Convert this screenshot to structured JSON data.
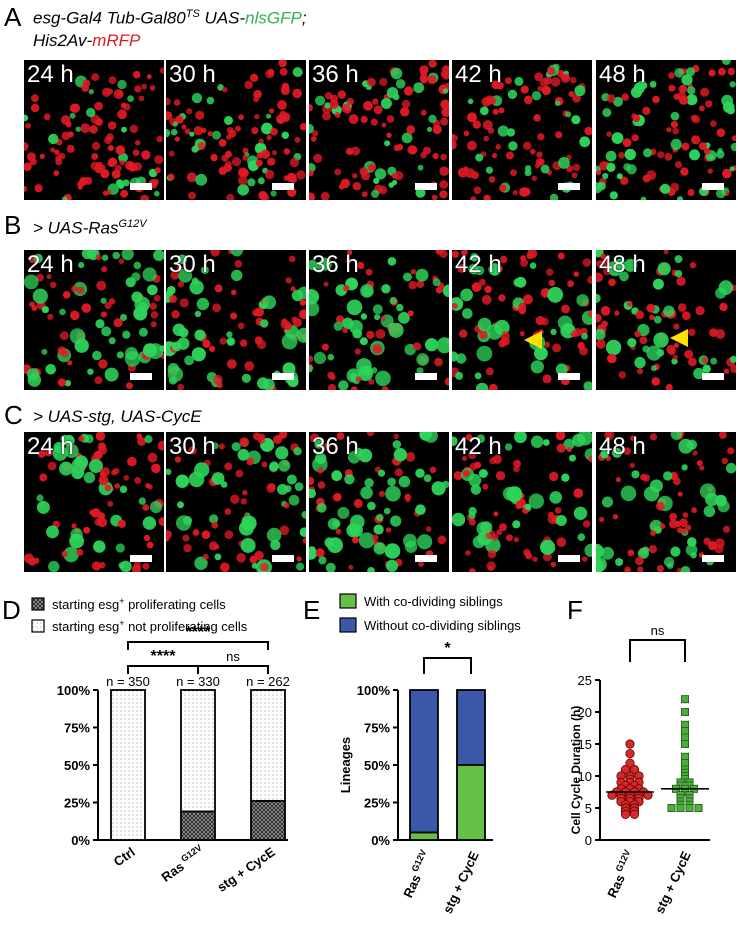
{
  "panels": {
    "A": {
      "letter": "A",
      "genotype_line1": "esg-Gal4 Tub-Gal80",
      "genotype_sup": "TS",
      "genotype_mid": " UAS-",
      "gfp": "nlsGFP",
      "semi": ";",
      "genotype_line2": "His2Av-",
      "rfp": "mRFP"
    },
    "B": {
      "letter": "B",
      "genotype": "> UAS-Ras",
      "sup": "G12V"
    },
    "C": {
      "letter": "C",
      "genotype": "> UAS-stg, UAS-CycE"
    },
    "D": {
      "letter": "D"
    },
    "E": {
      "letter": "E"
    },
    "F": {
      "letter": "F"
    }
  },
  "timepoints": [
    "24 h",
    "30 h",
    "36 h",
    "42 h",
    "48 h"
  ],
  "colors": {
    "gfp": "#2ed45a",
    "rfp": "#e01a24",
    "ras": "#d42a2a",
    "stg": "#4caf3a",
    "blue": "#3b58a8",
    "green_bar": "#66c046"
  },
  "chart_data": [
    {
      "type": "bar",
      "panel": "D",
      "stacked": true,
      "categories": [
        "Ctrl",
        "Ras G12V",
        "stg + CycE"
      ],
      "category_labels": [
        {
          "main": "Ctrl",
          "sup": ""
        },
        {
          "main": "Ras",
          "sup": "G12V"
        },
        {
          "main": "stg + CycE",
          "sup": ""
        }
      ],
      "series": [
        {
          "name": "starting esg+ proliferating cells",
          "name_main": "starting esg",
          "name_sup": "+",
          "name_tail": " proliferating cells",
          "values": [
            0,
            19,
            26
          ],
          "pattern": "crosshatch"
        },
        {
          "name": "starting esg+ not proliferating cells",
          "name_main": "starting esg",
          "name_sup": "+",
          "name_tail": " not proliferating cells",
          "values": [
            100,
            81,
            74
          ],
          "pattern": "dots"
        }
      ],
      "n_labels": [
        "n = 350",
        "n = 330",
        "n = 262"
      ],
      "yticks": [
        "0%",
        "25%",
        "50%",
        "75%",
        "100%"
      ],
      "ylim": [
        0,
        100
      ],
      "significance": [
        {
          "pair": [
            0,
            1
          ],
          "label": "****"
        },
        {
          "pair": [
            1,
            2
          ],
          "label": "ns"
        },
        {
          "pair": [
            0,
            2
          ],
          "label": "****"
        }
      ]
    },
    {
      "type": "bar",
      "panel": "E",
      "stacked": true,
      "categories": [
        "Ras G12V",
        "stg + CycE"
      ],
      "category_labels": [
        {
          "main": "Ras",
          "sup": "G12V"
        },
        {
          "main": "stg + CycE",
          "sup": ""
        }
      ],
      "series": [
        {
          "name": "With co-dividing siblings",
          "values": [
            5,
            50
          ]
        },
        {
          "name": "Without co-dividing siblings",
          "values": [
            95,
            50
          ]
        }
      ],
      "ylabel": "Lineages",
      "yticks": [
        "0%",
        "25%",
        "50%",
        "75%",
        "100%"
      ],
      "ylim": [
        0,
        100
      ],
      "significance": [
        {
          "pair": [
            0,
            1
          ],
          "label": "*"
        }
      ]
    },
    {
      "type": "scatter",
      "panel": "F",
      "categories": [
        "Ras G12V",
        "stg + CycE"
      ],
      "category_labels": [
        {
          "main": "Ras",
          "sup": "G12V"
        },
        {
          "main": "stg + CycE",
          "sup": ""
        }
      ],
      "ylabel": "Cell Cycle Duration (h)",
      "yticks": [
        "0",
        "5",
        "10",
        "15",
        "20",
        "25"
      ],
      "ylim": [
        0,
        25
      ],
      "series": [
        {
          "name": "Ras G12V",
          "values": [
            15,
            13.5,
            12,
            11,
            11,
            10,
            10,
            10,
            9.5,
            9,
            9,
            9,
            8.5,
            8.5,
            8,
            8,
            8,
            7.5,
            7.5,
            7.5,
            7.5,
            7,
            7,
            7,
            7,
            7,
            6.5,
            6.5,
            6.5,
            6,
            6,
            6,
            5.5,
            5.5,
            5,
            5,
            4.5,
            4.5,
            4,
            4
          ],
          "median": 7.5,
          "marker": "circle"
        },
        {
          "name": "stg + CycE",
          "values": [
            22,
            20,
            18,
            17,
            16,
            15,
            13,
            12,
            11,
            10.5,
            10,
            9.5,
            9,
            9,
            8.5,
            8.5,
            8,
            8,
            8,
            7.5,
            7,
            7,
            6.5,
            6.5,
            6,
            6,
            5.5,
            5.5,
            5,
            5,
            5,
            5
          ],
          "median": 8,
          "marker": "square"
        }
      ],
      "significance": [
        {
          "pair": [
            0,
            1
          ],
          "label": "ns"
        }
      ]
    }
  ]
}
